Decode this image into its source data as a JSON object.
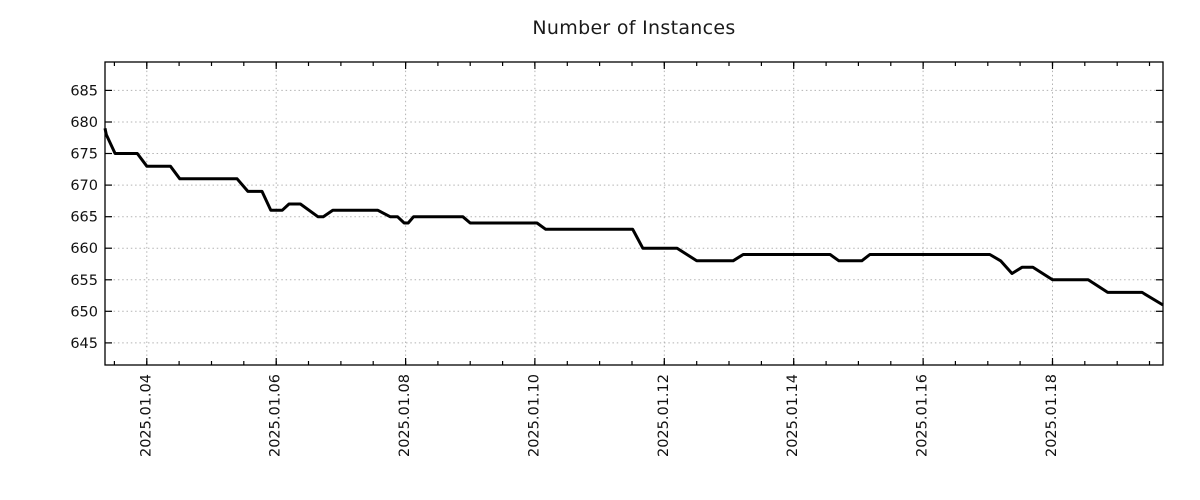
{
  "chart_data": {
    "type": "line",
    "title": "Number of Instances",
    "series_name": "number-of-instances",
    "legend": "none",
    "grid": true,
    "colors": {
      "line": "#000000",
      "grid": "#b3b3b3",
      "axis": "#000000",
      "text": "#111111",
      "background": "#ffffff"
    },
    "line_width": 3,
    "ylim": [
      641.5,
      689.5
    ],
    "yticks": [
      645,
      650,
      655,
      660,
      665,
      670,
      675,
      680,
      685
    ],
    "xlim": [
      "2025-01-03T08:30",
      "2025-01-19T17:00"
    ],
    "xtick_minor_hours": 12,
    "xticks_major": [
      {
        "t": "2025-01-04T00:00",
        "label": "2025.01.04"
      },
      {
        "t": "2025-01-06T00:00",
        "label": "2025.01.06"
      },
      {
        "t": "2025-01-08T00:00",
        "label": "2025.01.08"
      },
      {
        "t": "2025-01-10T00:00",
        "label": "2025.01.10"
      },
      {
        "t": "2025-01-12T00:00",
        "label": "2025.01.12"
      },
      {
        "t": "2025-01-14T00:00",
        "label": "2025.01.14"
      },
      {
        "t": "2025-01-16T00:00",
        "label": "2025.01.16"
      },
      {
        "t": "2025-01-18T00:00",
        "label": "2025.01.18"
      }
    ],
    "points": [
      {
        "t": "2025-01-03T08:30",
        "v": 679
      },
      {
        "t": "2025-01-03T09:00",
        "v": 678
      },
      {
        "t": "2025-01-03T12:15",
        "v": 675
      },
      {
        "t": "2025-01-03T20:30",
        "v": 675
      },
      {
        "t": "2025-01-04T00:00",
        "v": 673
      },
      {
        "t": "2025-01-04T08:45",
        "v": 673
      },
      {
        "t": "2025-01-04T12:15",
        "v": 671
      },
      {
        "t": "2025-01-05T09:30",
        "v": 671
      },
      {
        "t": "2025-01-05T13:30",
        "v": 669
      },
      {
        "t": "2025-01-05T18:45",
        "v": 669
      },
      {
        "t": "2025-01-05T22:00",
        "v": 666
      },
      {
        "t": "2025-01-06T02:15",
        "v": 666
      },
      {
        "t": "2025-01-06T04:45",
        "v": 667
      },
      {
        "t": "2025-01-06T09:00",
        "v": 667
      },
      {
        "t": "2025-01-06T15:30",
        "v": 665
      },
      {
        "t": "2025-01-06T17:30",
        "v": 665
      },
      {
        "t": "2025-01-06T21:00",
        "v": 666
      },
      {
        "t": "2025-01-07T13:45",
        "v": 666
      },
      {
        "t": "2025-01-07T18:15",
        "v": 665
      },
      {
        "t": "2025-01-07T21:00",
        "v": 665
      },
      {
        "t": "2025-01-07T23:30",
        "v": 664
      },
      {
        "t": "2025-01-08T01:00",
        "v": 664
      },
      {
        "t": "2025-01-08T03:00",
        "v": 665
      },
      {
        "t": "2025-01-08T21:15",
        "v": 665
      },
      {
        "t": "2025-01-09T00:00",
        "v": 664
      },
      {
        "t": "2025-01-10T00:45",
        "v": 664
      },
      {
        "t": "2025-01-10T04:00",
        "v": 663
      },
      {
        "t": "2025-01-11T12:15",
        "v": 663
      },
      {
        "t": "2025-01-11T16:00",
        "v": 660
      },
      {
        "t": "2025-01-12T04:45",
        "v": 660
      },
      {
        "t": "2025-01-12T12:00",
        "v": 658
      },
      {
        "t": "2025-01-13T01:30",
        "v": 658
      },
      {
        "t": "2025-01-13T05:15",
        "v": 659
      },
      {
        "t": "2025-01-14T13:30",
        "v": 659
      },
      {
        "t": "2025-01-14T16:45",
        "v": 658
      },
      {
        "t": "2025-01-15T01:15",
        "v": 658
      },
      {
        "t": "2025-01-15T04:15",
        "v": 659
      },
      {
        "t": "2025-01-17T00:45",
        "v": 659
      },
      {
        "t": "2025-01-17T04:45",
        "v": 658
      },
      {
        "t": "2025-01-17T09:00",
        "v": 656
      },
      {
        "t": "2025-01-17T12:45",
        "v": 657
      },
      {
        "t": "2025-01-17T16:45",
        "v": 657
      },
      {
        "t": "2025-01-18T00:00",
        "v": 655
      },
      {
        "t": "2025-01-18T13:15",
        "v": 655
      },
      {
        "t": "2025-01-18T20:30",
        "v": 653
      },
      {
        "t": "2025-01-19T09:15",
        "v": 653
      },
      {
        "t": "2025-01-19T17:00",
        "v": 651
      }
    ]
  }
}
